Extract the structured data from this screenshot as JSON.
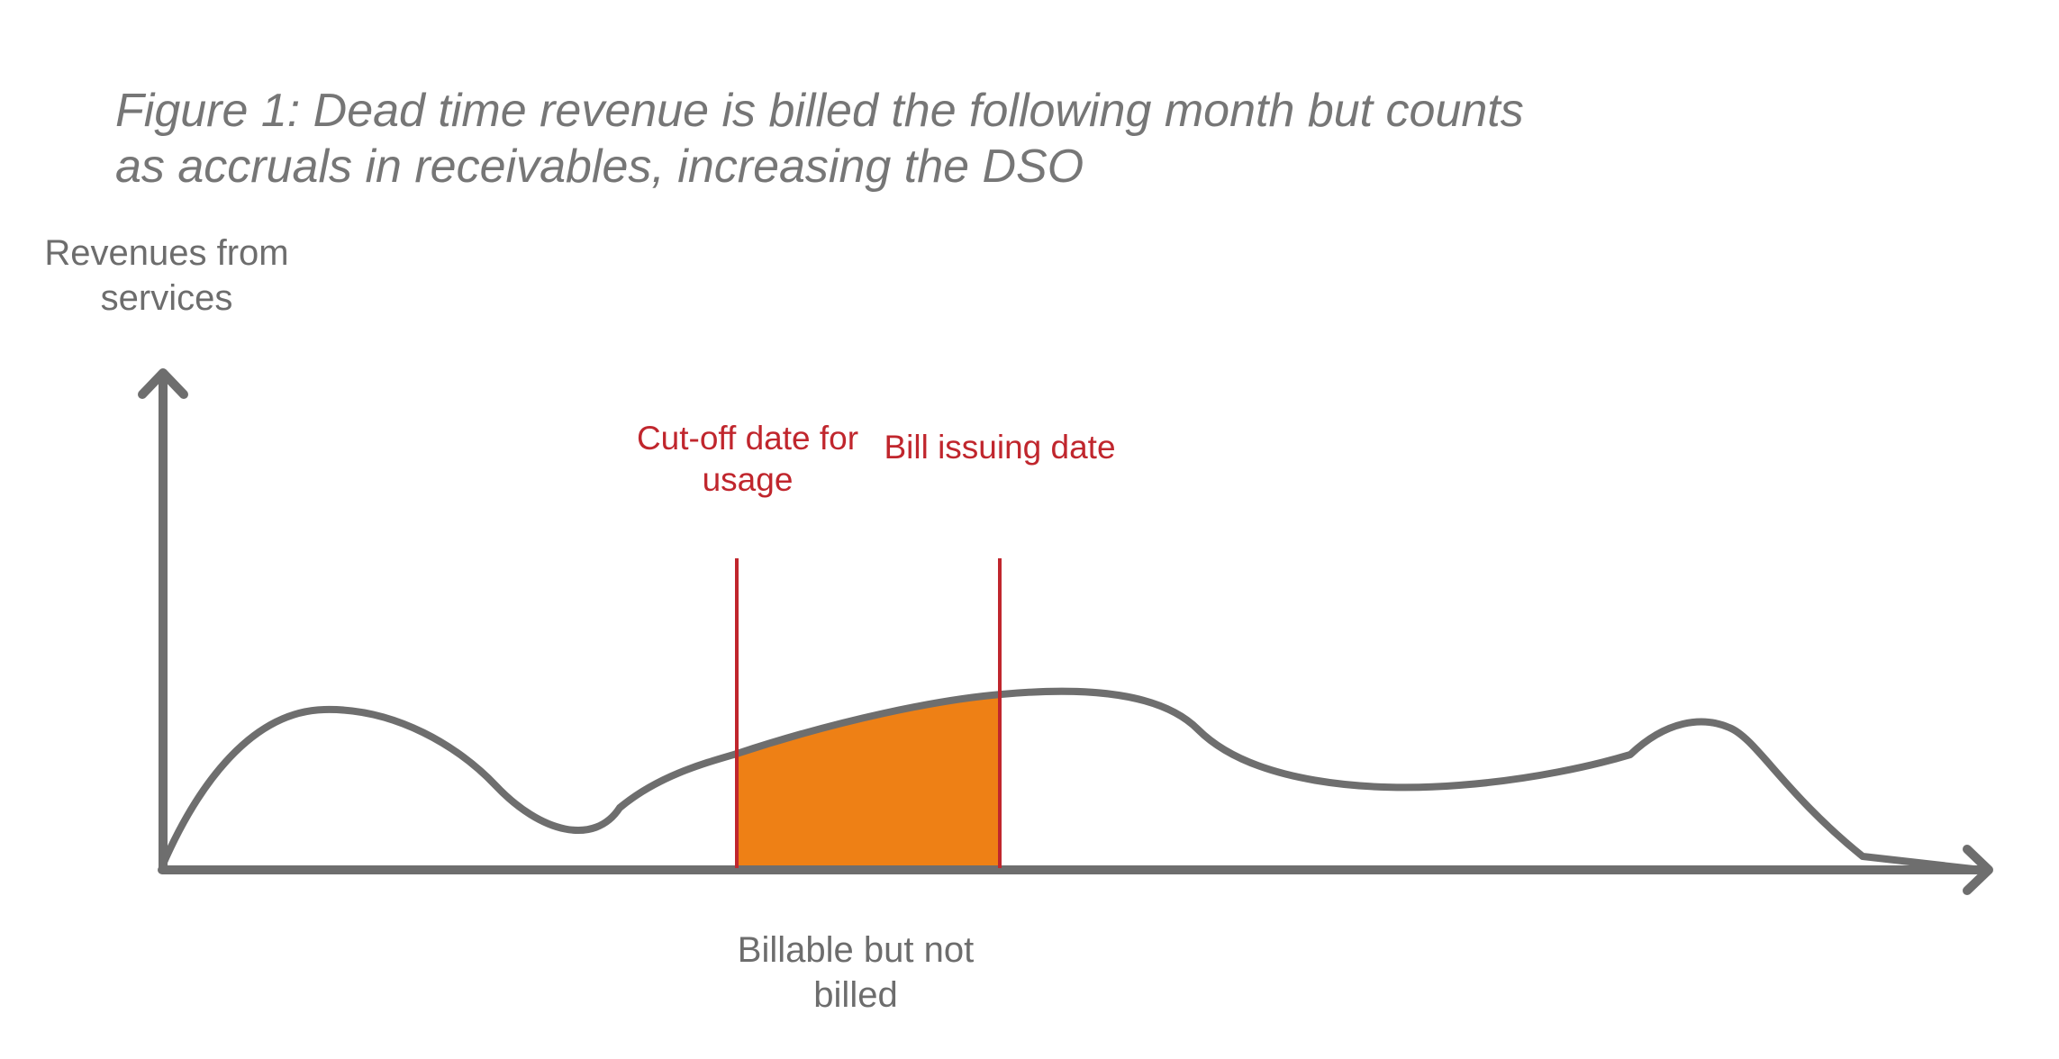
{
  "title": {
    "line1": "Figure 1: Dead time revenue is billed the following month but counts",
    "line2": "as accruals in receivables, increasing the DSO"
  },
  "axes": {
    "y_label_line1": "Revenues from",
    "y_label_line2": "services"
  },
  "markers": {
    "cutoff_line1": "Cut-off date for",
    "cutoff_line2": "usage",
    "bill_issuing": "Bill issuing date"
  },
  "shaded_area": {
    "label_line1": "Billable but not",
    "label_line2": "billed"
  },
  "colors": {
    "axis": "#6e6e6e",
    "curve": "#6e6e6e",
    "marker": "#c0262d",
    "fill": "#ee8015",
    "text": "#6d6d6d"
  }
}
